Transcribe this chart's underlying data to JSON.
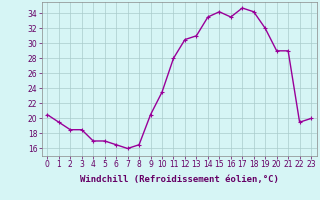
{
  "x": [
    0,
    1,
    2,
    3,
    4,
    5,
    6,
    7,
    8,
    9,
    10,
    11,
    12,
    13,
    14,
    15,
    16,
    17,
    18,
    19,
    20,
    21,
    22,
    23
  ],
  "y": [
    20.5,
    19.5,
    18.5,
    18.5,
    17.0,
    17.0,
    16.5,
    16.0,
    16.5,
    20.5,
    23.5,
    28.0,
    30.5,
    31.0,
    33.5,
    34.2,
    33.5,
    34.7,
    34.2,
    32.0,
    29.0,
    29.0,
    19.5,
    20.0
  ],
  "line_color": "#990099",
  "marker": "+",
  "marker_size": 3,
  "bg_color": "#d6f5f5",
  "grid_color": "#aacccc",
  "xlabel": "Windchill (Refroidissement éolien,°C)",
  "ylim": [
    15.0,
    35.5
  ],
  "xlim": [
    -0.5,
    23.5
  ],
  "yticks": [
    16,
    18,
    20,
    22,
    24,
    26,
    28,
    30,
    32,
    34
  ],
  "xticks": [
    0,
    1,
    2,
    3,
    4,
    5,
    6,
    7,
    8,
    9,
    10,
    11,
    12,
    13,
    14,
    15,
    16,
    17,
    18,
    19,
    20,
    21,
    22,
    23
  ],
  "tick_fontsize": 5.5,
  "xlabel_fontsize": 6.5,
  "line_width": 1.0
}
